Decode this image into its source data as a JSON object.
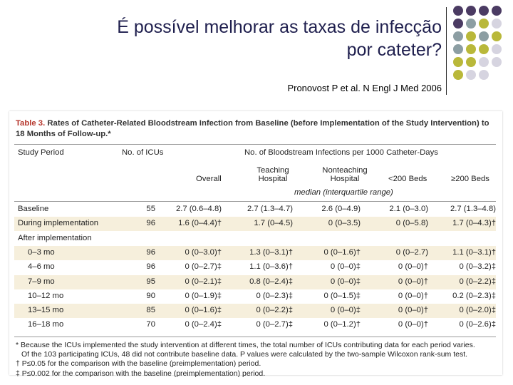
{
  "slide": {
    "title_line1": "É possível melhorar as taxas de infecção",
    "title_line2": "por cateter?",
    "source": "Pronovost P et al. N Engl J Med 2006"
  },
  "decor": {
    "dot_colors": [
      "#4b3b63",
      "#8c9ea3",
      "#b9b83a",
      "#d6d4e0"
    ]
  },
  "table": {
    "label": "Table 3.",
    "caption": "Rates of Catheter-Related Bloodstream Infection from Baseline (before Implementation of the Study Intervention) to 18 Months of Follow-up.*",
    "headers": {
      "study_period": "Study Period",
      "icus": "No. of ICUs",
      "infections": "No. of Bloodstream Infections per 1000 Catheter-Days",
      "overall": "Overall",
      "teaching_1": "Teaching",
      "teaching_2": "Hospital",
      "nonteaching_1": "Nonteaching",
      "nonteaching_2": "Hospital",
      "small": "<200 Beds",
      "large": "≥200 Beds",
      "median": "median (interquartile range)"
    },
    "rows": [
      {
        "period": "Baseline",
        "icus": "55",
        "overall": "2.7 (0.6–4.8)",
        "teaching": "2.7 (1.3–4.7)",
        "nonteaching": "2.6 (0–4.9)",
        "small": "2.1 (0–3.0)",
        "large": "2.7 (1.3–4.8)",
        "shaded": false
      },
      {
        "period": "During implementation",
        "icus": "96",
        "overall": "1.6 (0–4.4)†",
        "teaching": "1.7 (0–4.5)",
        "nonteaching": "0 (0–3.5)",
        "small": "0 (0–5.8)",
        "large": "1.7 (0–4.3)†",
        "shaded": true
      },
      {
        "period": "After implementation",
        "icus": "",
        "overall": "",
        "teaching": "",
        "nonteaching": "",
        "small": "",
        "large": "",
        "shaded": false
      },
      {
        "period": "0–3 mo",
        "icus": "96",
        "overall": "0 (0–3.0)†",
        "teaching": "1.3 (0–3.1)†",
        "nonteaching": "0 (0–1.6)†",
        "small": "0 (0–2.7)",
        "large": "1.1 (0–3.1)†",
        "shaded": true
      },
      {
        "period": "4–6 mo",
        "icus": "96",
        "overall": "0 (0–2.7)‡",
        "teaching": "1.1 (0–3.6)†",
        "nonteaching": "0 (0–0)‡",
        "small": "0 (0–0)†",
        "large": "0 (0–3.2)‡",
        "shaded": false
      },
      {
        "period": "7–9 mo",
        "icus": "95",
        "overall": "0 (0–2.1)‡",
        "teaching": "0.8 (0–2.4)‡",
        "nonteaching": "0 (0–0)‡",
        "small": "0 (0–0)†",
        "large": "0 (0–2.2)‡",
        "shaded": true
      },
      {
        "period": "10–12 mo",
        "icus": "90",
        "overall": "0 (0–1.9)‡",
        "teaching": "0 (0–2.3)‡",
        "nonteaching": "0 (0–1.5)‡",
        "small": "0 (0–0)†",
        "large": "0.2 (0–2.3)‡",
        "shaded": false
      },
      {
        "period": "13–15 mo",
        "icus": "85",
        "overall": "0 (0–1.6)‡",
        "teaching": "0 (0–2.2)‡",
        "nonteaching": "0 (0–0)‡",
        "small": "0 (0–0)†",
        "large": "0 (0–2.0)‡",
        "shaded": true
      },
      {
        "period": "16–18 mo",
        "icus": "70",
        "overall": "0 (0–2.4)‡",
        "teaching": "0 (0–2.7)‡",
        "nonteaching": "0 (0–1.2)†",
        "small": "0 (0–0)†",
        "large": "0 (0–2.6)‡",
        "shaded": false
      }
    ],
    "footnotes": [
      "* Because the ICUs implemented the study intervention at different times, the total number of ICUs contributing data for each period varies.",
      "Of the 103 participating ICUs, 48 did not contribute baseline data. P values were calculated by the two-sample Wilcoxon rank-sum test.",
      "† P≤0.05 for the comparison with the baseline (preimplementation) period.",
      "‡ P≤0.002 for the comparison with the baseline (preimplementation) period."
    ]
  }
}
